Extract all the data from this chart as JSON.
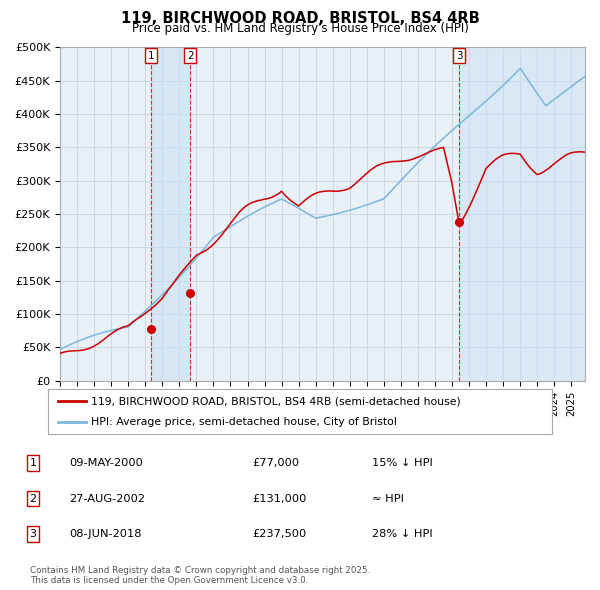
{
  "title": "119, BIRCHWOOD ROAD, BRISTOL, BS4 4RB",
  "subtitle": "Price paid vs. HM Land Registry's House Price Index (HPI)",
  "ylim": [
    0,
    500000
  ],
  "yticks": [
    0,
    50000,
    100000,
    150000,
    200000,
    250000,
    300000,
    350000,
    400000,
    450000,
    500000
  ],
  "ytick_labels": [
    "£0",
    "£50K",
    "£100K",
    "£150K",
    "£200K",
    "£250K",
    "£300K",
    "£350K",
    "£400K",
    "£450K",
    "£500K"
  ],
  "hpi_color": "#7ab8d9",
  "price_color": "#cc0000",
  "bg_color": "#e8f0f8",
  "grid_color": "#c8d8e8",
  "transactions": [
    {
      "label": "1",
      "date_num": 2000.35,
      "price": 77000,
      "note": "09-MAY-2000",
      "price_str": "£77,000",
      "pct": "15% ↓ HPI"
    },
    {
      "label": "2",
      "date_num": 2002.65,
      "price": 131000,
      "note": "27-AUG-2002",
      "price_str": "£131,000",
      "pct": "≈ HPI"
    },
    {
      "label": "3",
      "date_num": 2018.43,
      "price": 237500,
      "note": "08-JUN-2018",
      "price_str": "£237,500",
      "pct": "28% ↓ HPI"
    }
  ],
  "footnote1": "Contains HM Land Registry data © Crown copyright and database right 2025.",
  "footnote2": "This data is licensed under the Open Government Licence v3.0.",
  "legend_label_red": "119, BIRCHWOOD ROAD, BRISTOL, BS4 4RB (semi-detached house)",
  "legend_label_blue": "HPI: Average price, semi-detached house, City of Bristol",
  "span_color": "#c8dff0",
  "xlim_left": 1995.0,
  "xlim_right": 2025.8
}
